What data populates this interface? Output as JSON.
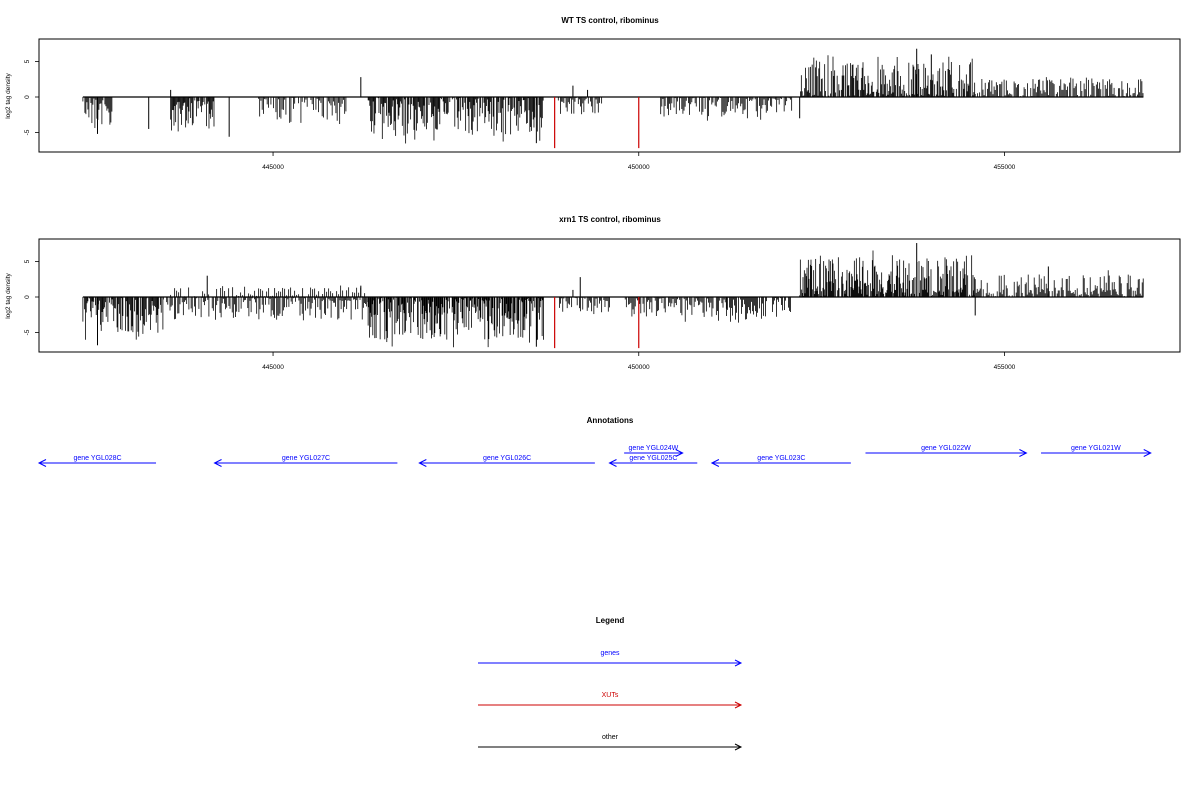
{
  "chart_data": [
    {
      "type": "bar",
      "title": "WT TS control, ribominus",
      "ylabel": "log2 tag density",
      "xlim": [
        441800,
        457400
      ],
      "ylim": [
        -8,
        8
      ],
      "x_ticks": [
        445000,
        450000,
        455000
      ],
      "x_tick_labels": [
        "445000",
        "450000",
        "455000"
      ],
      "y_ticks": [
        -5,
        0,
        5
      ],
      "y_tick_labels": [
        "-5",
        "0",
        "5"
      ],
      "grid": false,
      "baseline_range": [
        442400,
        456900
      ],
      "minus_strand_segments": [
        [
          442400,
          442800,
          4.2,
          1.0
        ],
        [
          443600,
          444200,
          4.5,
          1.2
        ],
        [
          444800,
          446000,
          3.2,
          0.8
        ],
        [
          446300,
          448700,
          5.5,
          1.2
        ],
        [
          448900,
          449500,
          2.5,
          0.9
        ],
        [
          450300,
          451800,
          2.8,
          0.9
        ],
        [
          451800,
          452100,
          2.2,
          0.8
        ]
      ],
      "plus_strand_segments": [
        [
          452200,
          454600,
          5.0,
          1.2
        ],
        [
          454600,
          456900,
          2.6,
          0.9
        ]
      ],
      "spikes": [
        [
          442600,
          -5.2
        ],
        [
          443300,
          -4.5
        ],
        [
          443600,
          1.0
        ],
        [
          444400,
          -5.6
        ],
        [
          446200,
          2.8
        ],
        [
          448600,
          -6.5
        ],
        [
          449100,
          1.6
        ],
        [
          449300,
          1.0
        ],
        [
          453800,
          6.8
        ],
        [
          454000,
          6.0
        ],
        [
          452200,
          -3.0
        ]
      ],
      "highlights": [
        {
          "x": 448850,
          "y": -7.2,
          "color": "#cc0000"
        },
        {
          "x": 450000,
          "y": -7.2,
          "color": "#cc0000"
        }
      ]
    },
    {
      "type": "bar",
      "title": "xrn1 TS control, ribominus",
      "ylabel": "log2 tag density",
      "xlim": [
        441800,
        457400
      ],
      "ylim": [
        -8,
        8
      ],
      "x_ticks": [
        445000,
        450000,
        455000
      ],
      "x_tick_labels": [
        "445000",
        "450000",
        "455000"
      ],
      "y_ticks": [
        -5,
        0,
        5
      ],
      "y_tick_labels": [
        "-5",
        "0",
        "5"
      ],
      "grid": false,
      "baseline_range": [
        442400,
        456900
      ],
      "minus_strand_segments": [
        [
          442400,
          443500,
          5.2,
          1.2
        ],
        [
          443500,
          446300,
          3.2,
          0.9
        ],
        [
          446300,
          448700,
          6.0,
          1.5
        ],
        [
          448900,
          449600,
          2.5,
          0.9
        ],
        [
          449800,
          451200,
          3.0,
          0.9
        ],
        [
          451200,
          452100,
          3.5,
          1.0
        ]
      ],
      "plus_strand_segments": [
        [
          452200,
          454600,
          5.6,
          1.5
        ],
        [
          454600,
          456900,
          3.2,
          1.0
        ],
        [
          443600,
          446300,
          1.4,
          0.5
        ]
      ],
      "spikes": [
        [
          442600,
          -6.8
        ],
        [
          444100,
          3.0
        ],
        [
          446200,
          1.6
        ],
        [
          448600,
          -7.0
        ],
        [
          449200,
          2.8
        ],
        [
          449100,
          1.0
        ],
        [
          453800,
          7.6
        ],
        [
          454600,
          -2.6
        ],
        [
          455600,
          4.3
        ]
      ],
      "highlights": [
        {
          "x": 448850,
          "y": -7.2,
          "color": "#cc0000"
        },
        {
          "x": 450000,
          "y": -7.2,
          "color": "#cc0000"
        }
      ]
    }
  ],
  "annotations": {
    "title": "Annotations",
    "color": "#0000ff",
    "genes": [
      {
        "label": "gene YGL028C",
        "start": 441800,
        "end": 443400,
        "strand": "-",
        "row": 0
      },
      {
        "label": "gene YGL027C",
        "start": 444200,
        "end": 446700,
        "strand": "-",
        "row": 0
      },
      {
        "label": "gene YGL026C",
        "start": 447000,
        "end": 449400,
        "strand": "-",
        "row": 0
      },
      {
        "label": "gene YGL025C",
        "start": 449600,
        "end": 450800,
        "strand": "-",
        "row": 0
      },
      {
        "label": "gene YGL024W",
        "start": 449800,
        "end": 450600,
        "strand": "+",
        "row": 1
      },
      {
        "label": "gene YGL023C",
        "start": 451000,
        "end": 452900,
        "strand": "-",
        "row": 0
      },
      {
        "label": "gene YGL022W",
        "start": 453100,
        "end": 455300,
        "strand": "+",
        "row": 1
      },
      {
        "label": "gene YGL021W",
        "start": 455500,
        "end": 457000,
        "strand": "+",
        "row": 1
      }
    ]
  },
  "legend": {
    "title": "Legend",
    "items": [
      {
        "label": "genes",
        "color": "#0000ff"
      },
      {
        "label": "XUTs",
        "color": "#cc0000"
      },
      {
        "label": "other",
        "color": "#000000"
      }
    ]
  }
}
